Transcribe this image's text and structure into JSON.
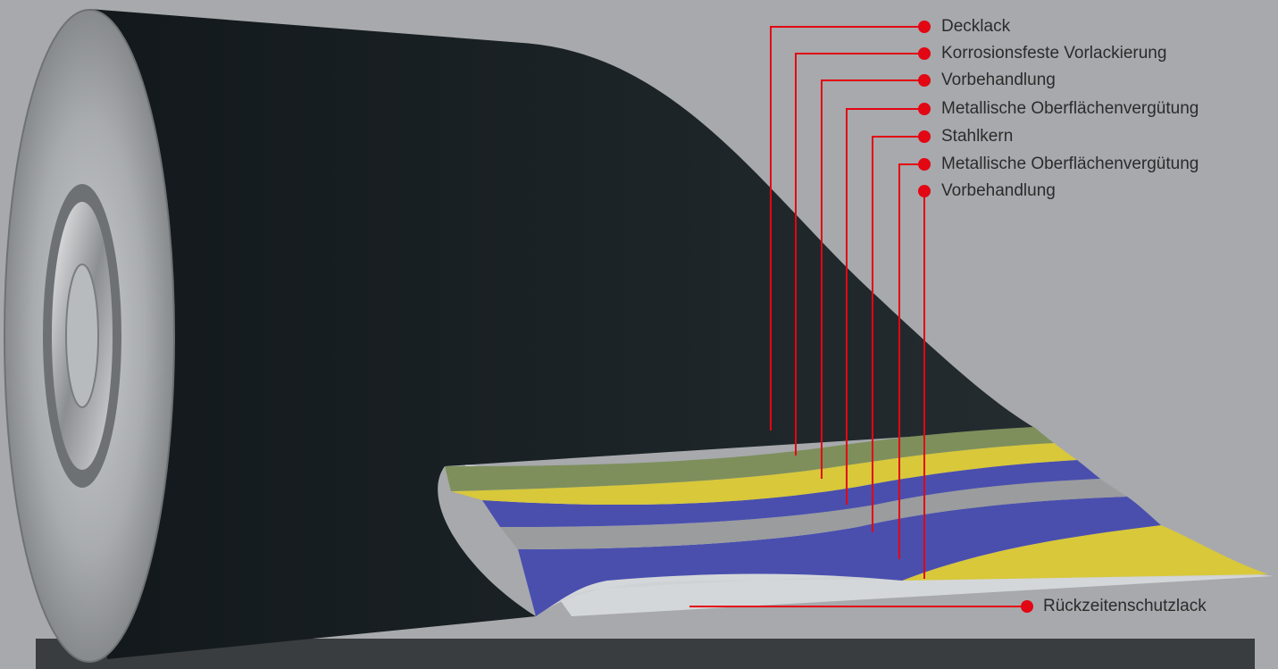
{
  "callouts": {
    "layers": [
      "Decklack",
      "Korrosionsfeste Vorlackierung",
      "Vorbehandlung",
      "Metallische Oberflächenvergütung",
      "Stahlkern",
      "Metallische Oberflächenvergütung",
      "Vorbehandlung"
    ],
    "bottom": "Rückzeitenschutzlack"
  },
  "colors": {
    "background": "#a7a9ac",
    "coil_surface": "#1d2428",
    "callout_line": "#e30613",
    "layer_green": "#7e8f5c",
    "layer_yellow": "#d8c83a",
    "layer_blue": "#4a4fae",
    "layer_grey": "#9a9c9e",
    "layer_silver": "#cfd2d4",
    "bottom_bar": "#3a3d40"
  }
}
